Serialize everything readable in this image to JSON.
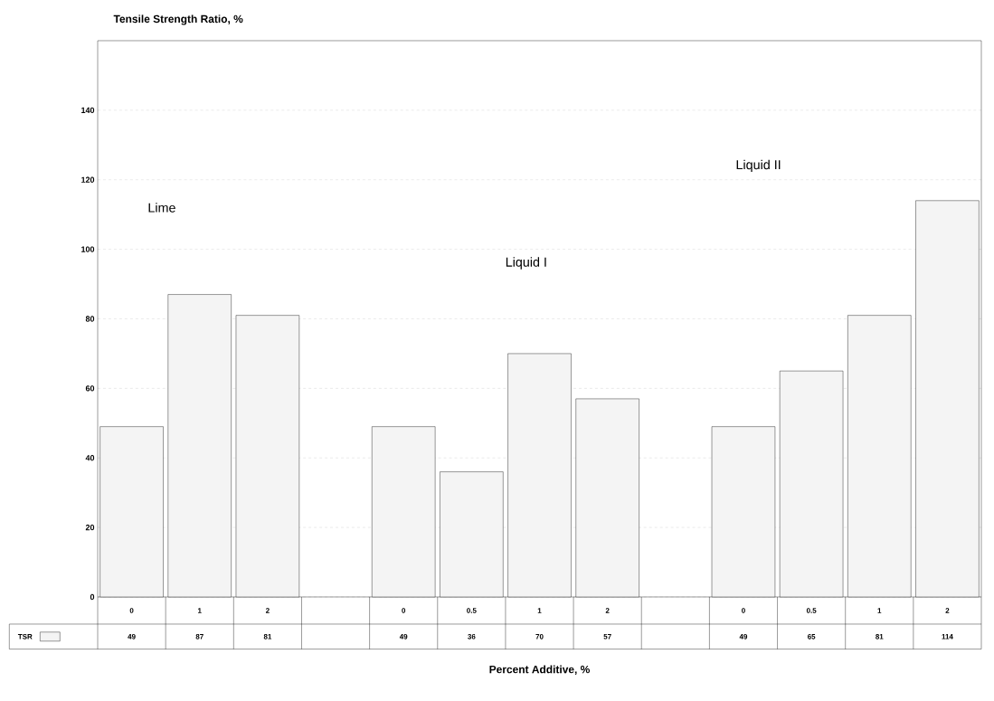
{
  "chart_data": {
    "type": "bar",
    "ylabel": "Tensile Strength Ratio, %",
    "xlabel": "Percent Additive, %",
    "categories": [
      "0",
      "1",
      "2",
      null,
      "0",
      "0.5",
      "1",
      "2",
      null,
      "0",
      "0.5",
      "1",
      "2"
    ],
    "series": [
      {
        "name": "TSR",
        "color": "#f4f4f4",
        "values": [
          49,
          87,
          81,
          null,
          49,
          36,
          70,
          57,
          null,
          49,
          65,
          81,
          114
        ]
      }
    ],
    "ylim": [
      0,
      160
    ],
    "yticks": [
      0,
      20,
      40,
      60,
      80,
      100,
      120,
      140
    ],
    "grid": "y",
    "data_labels": true,
    "legend": "bottom left",
    "annotations": [
      "Lime",
      "Liquid I",
      "Liquid II"
    ]
  }
}
